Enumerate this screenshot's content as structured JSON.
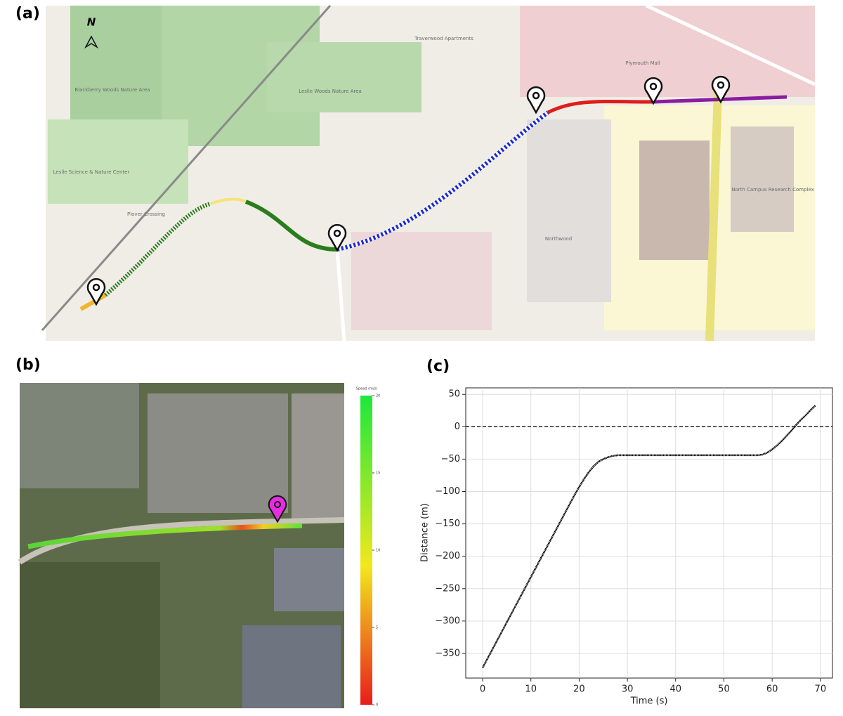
{
  "panels": {
    "a": {
      "label": "(a)",
      "north": "N",
      "places": [
        "Leslie Science & Nature Center",
        "Leslie Woods Nature Area",
        "Traverwood Apartments",
        "Plymouth Mall",
        "North Campus Research Complex",
        "Northwood",
        "Plover Crossing",
        "Blackberry Woods Nature Area"
      ]
    },
    "b": {
      "label": "(b)",
      "colorbar": {
        "label": "Speed (m/s)",
        "lim": [
          0,
          20
        ],
        "ticks": [
          0,
          5,
          10,
          15,
          20
        ]
      }
    },
    "c": {
      "label": "(c)"
    }
  },
  "chart_data": {
    "type": "line",
    "xlabel": "Time (s)",
    "ylabel": "Distance (m)",
    "x": [
      0,
      1,
      2,
      3,
      4,
      5,
      6,
      7,
      8,
      9,
      10,
      11,
      12,
      13,
      14,
      15,
      16,
      17,
      18,
      19,
      20,
      21,
      22,
      23,
      24,
      25,
      26,
      27,
      28,
      29,
      30,
      31,
      32,
      33,
      34,
      35,
      36,
      37,
      38,
      39,
      40,
      41,
      42,
      43,
      44,
      45,
      46,
      47,
      48,
      49,
      50,
      51,
      52,
      53,
      54,
      55,
      56,
      57,
      58,
      59,
      60,
      61,
      62,
      63,
      64,
      65,
      66,
      67,
      68,
      69
    ],
    "series": [
      {
        "color": "#000000",
        "values": [
          -372,
          -358,
          -344,
          -330,
          -316,
          -302,
          -288,
          -274,
          -260,
          -246,
          -232,
          -218,
          -204,
          -190,
          -176,
          -162,
          -148,
          -134,
          -120,
          -106,
          -93,
          -81,
          -70,
          -61,
          -54,
          -50,
          -47,
          -45,
          -44,
          -44,
          -44,
          -44,
          -44,
          -44,
          -44,
          -44,
          -44,
          -44,
          -44,
          -44,
          -44,
          -44,
          -44,
          -44,
          -44,
          -44,
          -44,
          -44,
          -44,
          -44,
          -44,
          -44,
          -44,
          -44,
          -44,
          -44,
          -44,
          -44,
          -43,
          -40,
          -35,
          -29,
          -22,
          -14,
          -6,
          3,
          11,
          18,
          26,
          33
        ]
      }
    ],
    "hline": 0,
    "xlim": [
      -3.5,
      72.5
    ],
    "ylim": [
      -388,
      60
    ],
    "xticks": [
      0,
      10,
      20,
      30,
      40,
      50,
      60,
      70
    ],
    "yticks": [
      50,
      0,
      -50,
      -100,
      -150,
      -200,
      -250,
      -300,
      -350
    ],
    "grid": true,
    "log_scale": false
  }
}
